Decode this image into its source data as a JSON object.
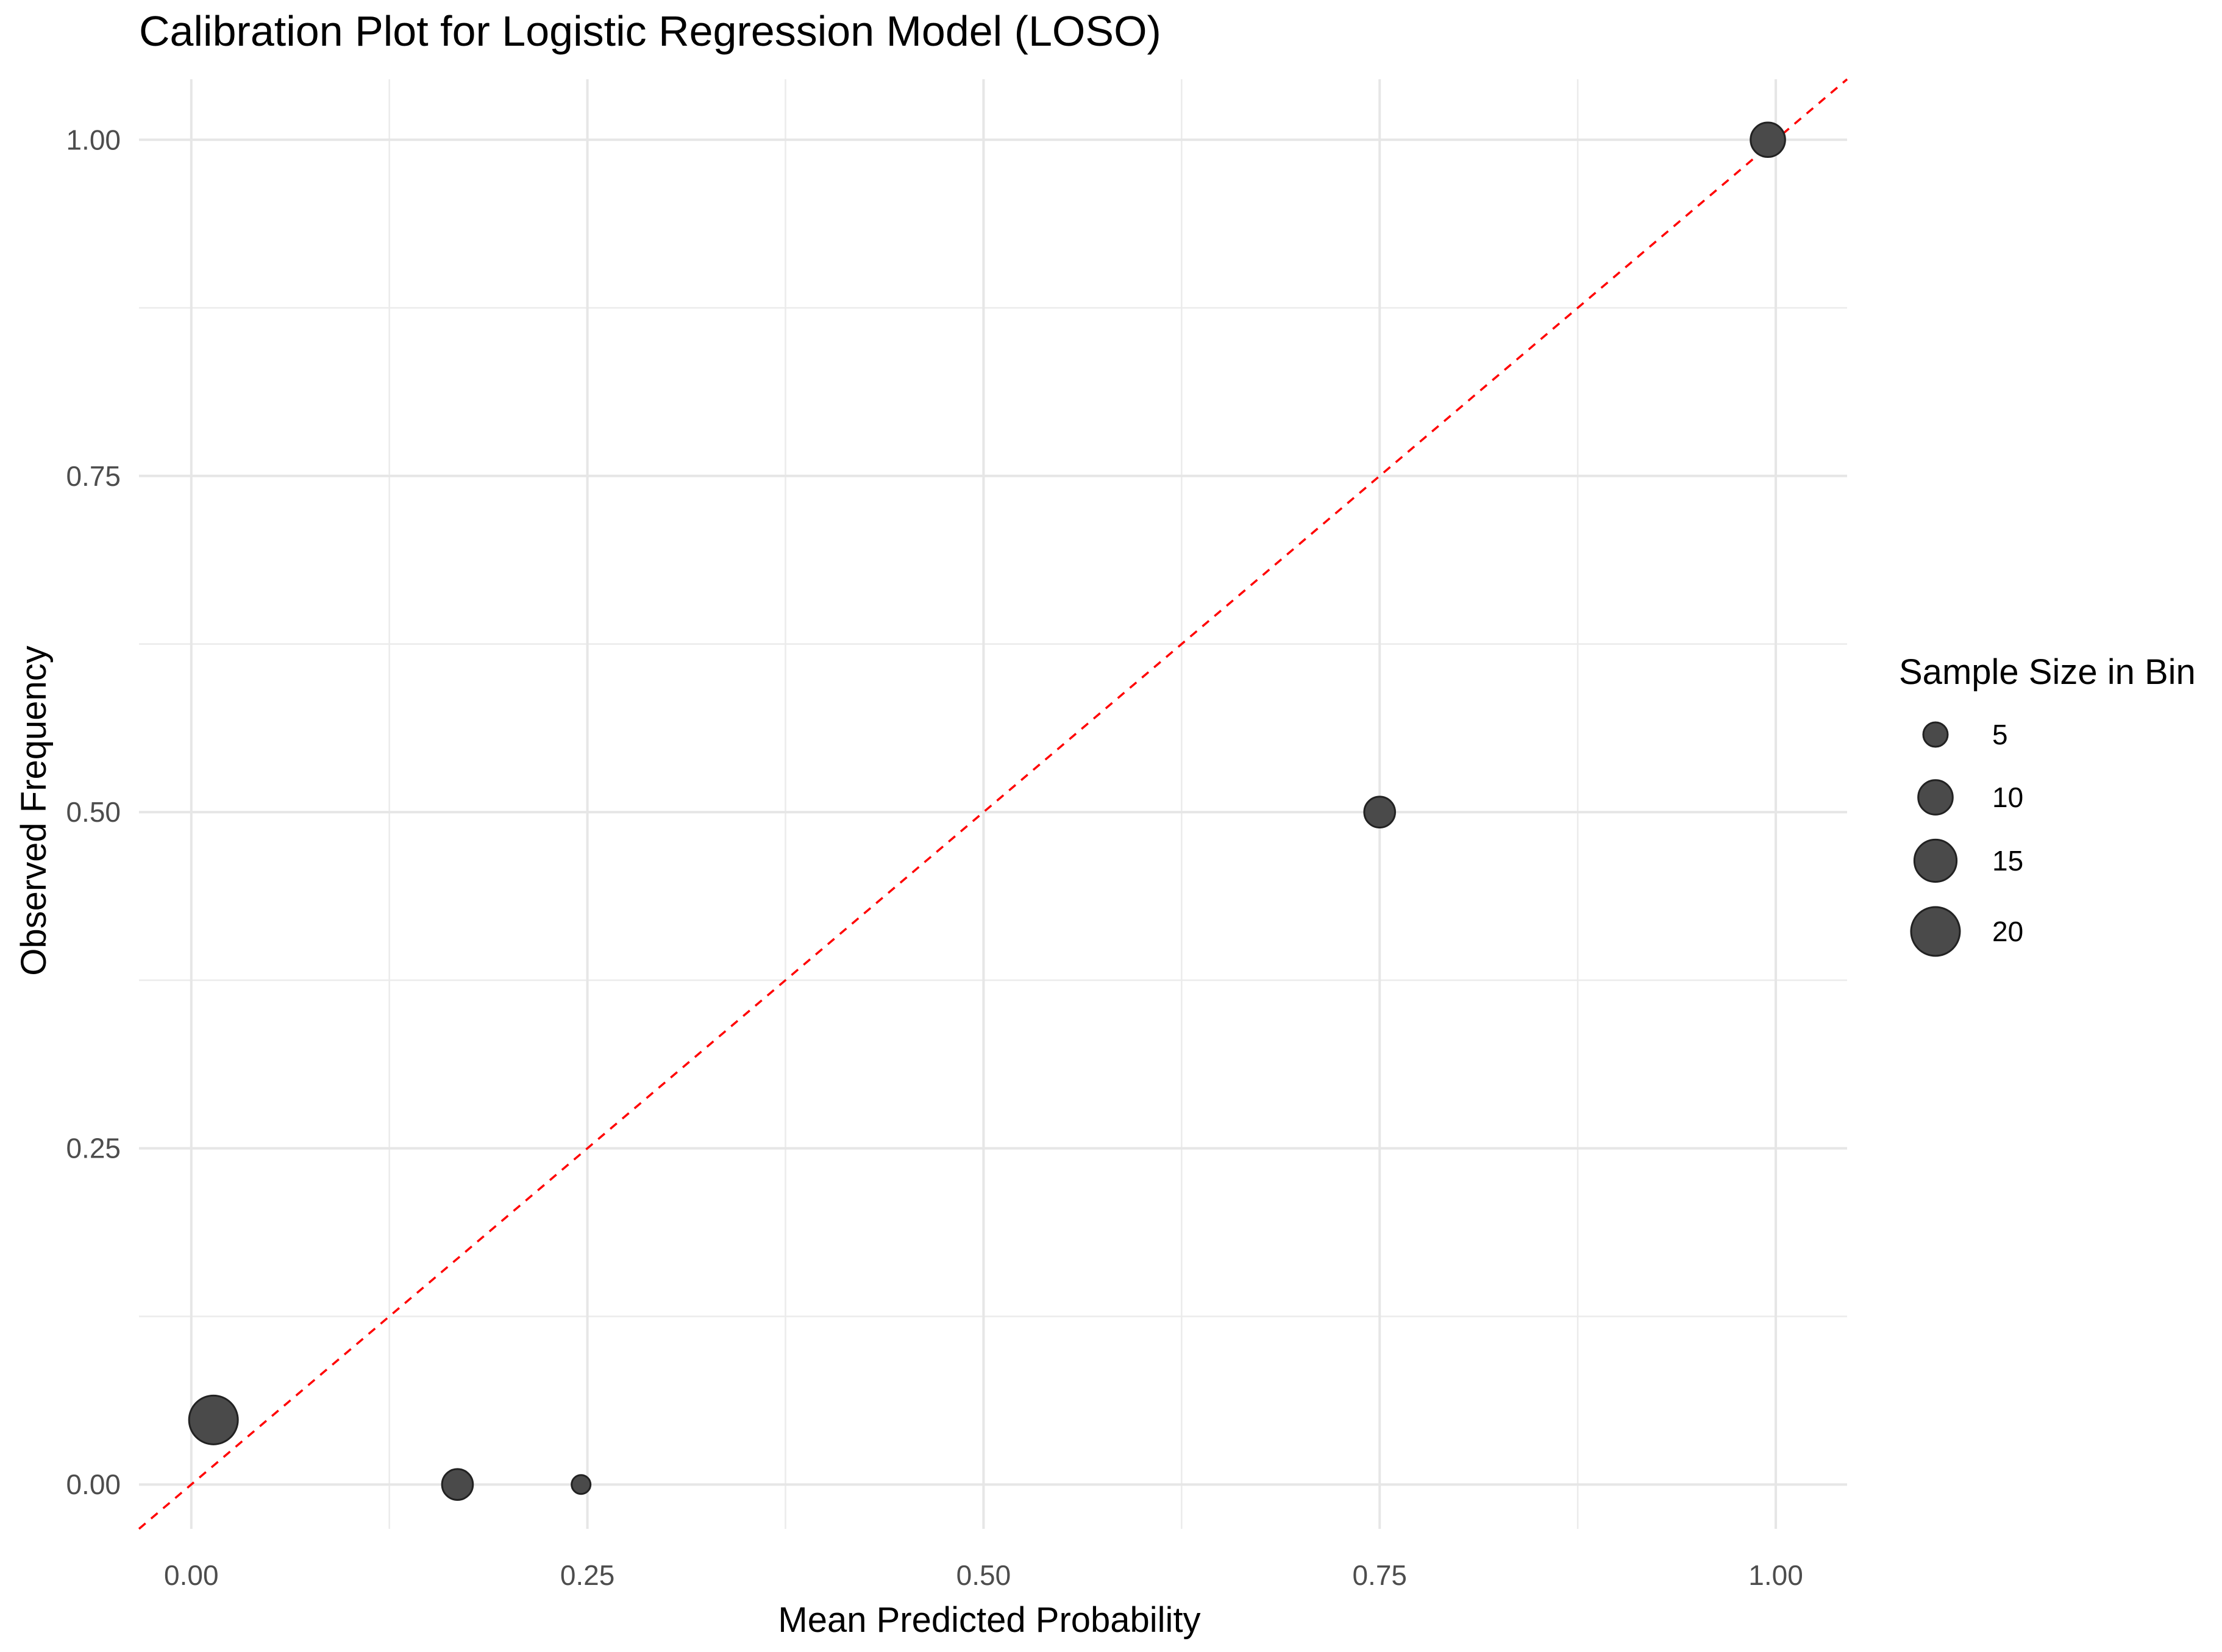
{
  "chart_data": {
    "type": "scatter",
    "title": "Calibration Plot for Logistic Regression Model (LOSO)",
    "xlabel": "Mean Predicted Probability",
    "ylabel": "Observed Frequency",
    "xlim": [
      -0.033,
      1.045
    ],
    "ylim": [
      -0.033,
      1.045
    ],
    "x_ticks": [
      0.0,
      0.25,
      0.5,
      0.75,
      1.0
    ],
    "x_tick_labels": [
      "0.00",
      "0.25",
      "0.50",
      "0.75",
      "1.00"
    ],
    "y_ticks": [
      0.0,
      0.25,
      0.5,
      0.75,
      1.0
    ],
    "y_tick_labels": [
      "0.00",
      "0.25",
      "0.50",
      "0.75",
      "1.00"
    ],
    "minor_gridlines": [
      0.125,
      0.375,
      0.625,
      0.875
    ],
    "grid": true,
    "reference_line": {
      "from": [
        -0.033,
        -0.033
      ],
      "to": [
        1.045,
        1.045
      ],
      "style": "dashed",
      "color": "#ff0000"
    },
    "points": [
      {
        "x": 0.014,
        "y": 0.048,
        "size": 20
      },
      {
        "x": 0.168,
        "y": 0.0,
        "size": 8
      },
      {
        "x": 0.246,
        "y": 0.0,
        "size": 3
      },
      {
        "x": 0.75,
        "y": 0.5,
        "size": 8
      },
      {
        "x": 0.995,
        "y": 1.0,
        "size": 10
      }
    ],
    "point_color": "#4a4a4a",
    "legend": {
      "title": "Sample Size in Bin",
      "placement": "right",
      "entries": [
        {
          "label": "5",
          "size": 5
        },
        {
          "label": "10",
          "size": 10
        },
        {
          "label": "15",
          "size": 15
        },
        {
          "label": "20",
          "size": 20
        }
      ]
    }
  }
}
